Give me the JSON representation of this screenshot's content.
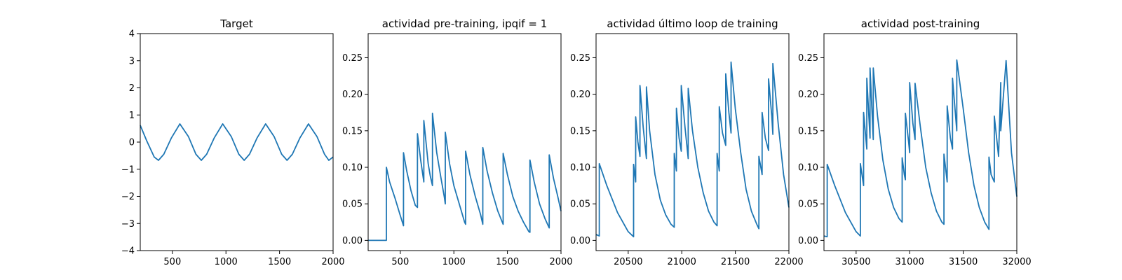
{
  "chart_data": [
    {
      "type": "line",
      "title": "Target",
      "xlim": [
        200,
        2000
      ],
      "ylim": [
        -4,
        4
      ],
      "xticks": [
        500,
        1000,
        1500,
        2000
      ],
      "yticks": [
        -4,
        -3,
        -2,
        -1,
        0,
        1,
        2,
        3,
        4
      ],
      "xticklabels": [
        "500",
        "1000",
        "1500",
        "2000"
      ],
      "yticklabels": [
        "−4",
        "−3",
        "−2",
        "−1",
        "0",
        "1",
        "2",
        "3",
        "4"
      ],
      "color": "#1f77b4",
      "series": [
        {
          "x": [
            200,
            260,
            330,
            370,
            420,
            490,
            570,
            650,
            720,
            770,
            820,
            890,
            970,
            1050,
            1120,
            1170,
            1220,
            1290,
            1370,
            1450,
            1520,
            1570,
            1620,
            1690,
            1770,
            1850,
            1920,
            1960,
            2000
          ],
          "y": [
            0.62,
            0.05,
            -0.55,
            -0.67,
            -0.45,
            0.15,
            0.67,
            0.2,
            -0.45,
            -0.67,
            -0.45,
            0.15,
            0.67,
            0.2,
            -0.45,
            -0.67,
            -0.45,
            0.15,
            0.67,
            0.2,
            -0.45,
            -0.67,
            -0.45,
            0.15,
            0.67,
            0.2,
            -0.45,
            -0.67,
            -0.55
          ]
        }
      ]
    },
    {
      "type": "line",
      "title": "actividad pre-training, ipqif = 1",
      "xlim": [
        200,
        2000
      ],
      "ylim": [
        -0.014,
        0.283
      ],
      "xticks": [
        500,
        1000,
        1500,
        2000
      ],
      "yticks": [
        0.0,
        0.05,
        0.1,
        0.15,
        0.2,
        0.25
      ],
      "xticklabels": [
        "500",
        "1000",
        "1500",
        "2000"
      ],
      "yticklabels": [
        "0.00",
        "0.05",
        "0.10",
        "0.15",
        "0.20",
        "0.25"
      ],
      "color": "#1f77b4",
      "series": [
        {
          "x": [
            200,
            370,
            370,
            400,
            450,
            500,
            530,
            530,
            560,
            600,
            640,
            660,
            660,
            690,
            720,
            720,
            760,
            780,
            800,
            800,
            840,
            880,
            910,
            920,
            920,
            960,
            1000,
            1050,
            1100,
            1110,
            1110,
            1150,
            1200,
            1250,
            1270,
            1270,
            1310,
            1360,
            1410,
            1460,
            1460,
            1500,
            1550,
            1600,
            1650,
            1700,
            1710,
            1710,
            1750,
            1800,
            1850,
            1890,
            1890,
            1930,
            1970,
            2000
          ],
          "y": [
            0,
            0,
            0.1,
            0.08,
            0.058,
            0.034,
            0.02,
            0.12,
            0.095,
            0.068,
            0.048,
            0.045,
            0.146,
            0.11,
            0.08,
            0.164,
            0.105,
            0.088,
            0.075,
            0.174,
            0.12,
            0.085,
            0.06,
            0.05,
            0.148,
            0.105,
            0.075,
            0.05,
            0.025,
            0.022,
            0.122,
            0.09,
            0.06,
            0.035,
            0.022,
            0.127,
            0.095,
            0.065,
            0.04,
            0.022,
            0.119,
            0.09,
            0.06,
            0.04,
            0.025,
            0.012,
            0.011,
            0.11,
            0.08,
            0.05,
            0.03,
            0.017,
            0.117,
            0.085,
            0.06,
            0.04
          ]
        }
      ]
    },
    {
      "type": "line",
      "title": "actividad último loop de training",
      "xlim": [
        20200,
        22000
      ],
      "ylim": [
        -0.014,
        0.283
      ],
      "xticks": [
        20500,
        21000,
        21500,
        22000
      ],
      "yticks": [
        0.0,
        0.05,
        0.1,
        0.15,
        0.2,
        0.25
      ],
      "xticklabels": [
        "20500",
        "21000",
        "21500",
        "22000"
      ],
      "yticklabels": [
        "0.00",
        "0.05",
        "0.10",
        "0.15",
        "0.20",
        "0.25"
      ],
      "color": "#1f77b4",
      "series": [
        {
          "x": [
            20200,
            20230,
            20230,
            20300,
            20400,
            20500,
            20550,
            20550,
            20570,
            20570,
            20590,
            20610,
            20610,
            20640,
            20670,
            20670,
            20700,
            20750,
            20800,
            20850,
            20900,
            20930,
            20930,
            20950,
            20950,
            20975,
            20995,
            20995,
            21030,
            21060,
            21060,
            21100,
            21150,
            21200,
            21250,
            21300,
            21330,
            21330,
            21350,
            21350,
            21380,
            21410,
            21410,
            21440,
            21460,
            21460,
            21500,
            21550,
            21600,
            21650,
            21700,
            21720,
            21720,
            21750,
            21750,
            21780,
            21810,
            21810,
            21840,
            21850,
            21850,
            21900,
            21950,
            22000
          ],
          "y": [
            0.008,
            0.006,
            0.105,
            0.075,
            0.038,
            0.012,
            0.005,
            0.104,
            0.08,
            0.169,
            0.135,
            0.115,
            0.212,
            0.155,
            0.112,
            0.21,
            0.15,
            0.09,
            0.055,
            0.035,
            0.022,
            0.018,
            0.119,
            0.095,
            0.181,
            0.14,
            0.122,
            0.212,
            0.155,
            0.112,
            0.208,
            0.15,
            0.1,
            0.065,
            0.04,
            0.025,
            0.02,
            0.119,
            0.095,
            0.183,
            0.147,
            0.13,
            0.228,
            0.175,
            0.147,
            0.244,
            0.18,
            0.12,
            0.07,
            0.04,
            0.022,
            0.016,
            0.115,
            0.09,
            0.175,
            0.14,
            0.123,
            0.221,
            0.17,
            0.145,
            0.242,
            0.16,
            0.09,
            0.045
          ]
        }
      ]
    },
    {
      "type": "line",
      "title": "actividad post-training",
      "xlim": [
        30200,
        32000
      ],
      "ylim": [
        -0.014,
        0.283
      ],
      "xticks": [
        30500,
        31000,
        31500,
        32000
      ],
      "yticks": [
        0.0,
        0.05,
        0.1,
        0.15,
        0.2,
        0.25
      ],
      "xticklabels": [
        "30500",
        "31000",
        "31500",
        "32000"
      ],
      "yticklabels": [
        "0.00",
        "0.05",
        "0.10",
        "0.15",
        "0.20",
        "0.25"
      ],
      "color": "#1f77b4",
      "series": [
        {
          "x": [
            30200,
            30230,
            30230,
            30300,
            30400,
            30500,
            30540,
            30540,
            30570,
            30570,
            30600,
            30600,
            30630,
            30630,
            30660,
            30660,
            30700,
            30750,
            30800,
            30850,
            30900,
            30930,
            30930,
            30950,
            30960,
            30960,
            30990,
            31000,
            31000,
            31030,
            31050,
            31050,
            31100,
            31150,
            31200,
            31250,
            31300,
            31320,
            31320,
            31350,
            31350,
            31380,
            31400,
            31400,
            31440,
            31440,
            31500,
            31550,
            31600,
            31650,
            31700,
            31740,
            31740,
            31760,
            31790,
            31790,
            31830,
            31850,
            31850,
            31900,
            31950,
            32000
          ],
          "y": [
            0.006,
            0.005,
            0.104,
            0.075,
            0.038,
            0.012,
            0.006,
            0.105,
            0.075,
            0.175,
            0.125,
            0.222,
            0.14,
            0.236,
            0.138,
            0.236,
            0.17,
            0.11,
            0.07,
            0.045,
            0.03,
            0.025,
            0.113,
            0.09,
            0.083,
            0.174,
            0.135,
            0.12,
            0.216,
            0.16,
            0.138,
            0.215,
            0.155,
            0.1,
            0.065,
            0.04,
            0.025,
            0.022,
            0.118,
            0.08,
            0.184,
            0.14,
            0.125,
            0.222,
            0.15,
            0.247,
            0.18,
            0.12,
            0.075,
            0.045,
            0.025,
            0.015,
            0.114,
            0.09,
            0.08,
            0.17,
            0.115,
            0.216,
            0.15,
            0.246,
            0.12,
            0.06
          ]
        }
      ]
    }
  ]
}
